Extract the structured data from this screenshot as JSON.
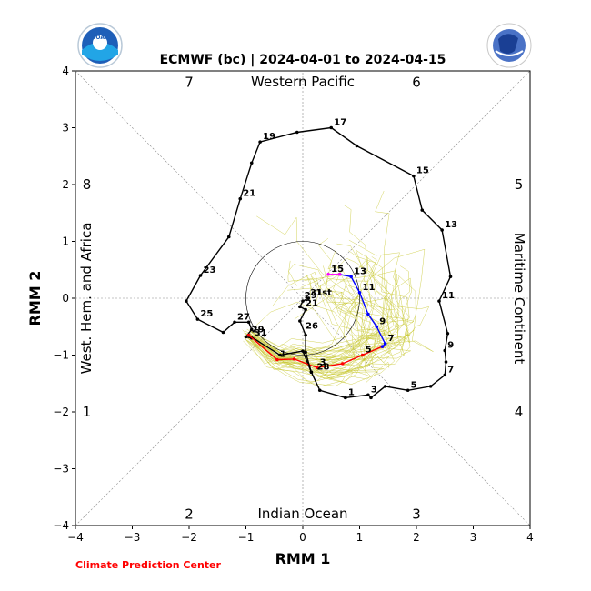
{
  "chart_data": {
    "type": "line",
    "title": "ECMWF (bc) | 2024-04-01 to 2024-04-15",
    "xlabel": "RMM 1",
    "ylabel": "RMM 2",
    "xlim": [
      -4,
      4
    ],
    "ylim": [
      -4,
      4
    ],
    "xticks": [
      "−4",
      "−3",
      "−2",
      "−1",
      "0",
      "1",
      "2",
      "3",
      "4"
    ],
    "yticks": [
      "−4",
      "−3",
      "−2",
      "−1",
      "0",
      "1",
      "2",
      "3",
      "4"
    ],
    "phase_labels": [
      {
        "text": "1",
        "x": -3.8,
        "y": -2.0
      },
      {
        "text": "2",
        "x": -2.0,
        "y": -3.8
      },
      {
        "text": "3",
        "x": 2.0,
        "y": -3.8
      },
      {
        "text": "4",
        "x": 3.8,
        "y": -2.0
      },
      {
        "text": "5",
        "x": 3.8,
        "y": 2.0
      },
      {
        "text": "6",
        "x": 2.0,
        "y": 3.8
      },
      {
        "text": "7",
        "x": -2.0,
        "y": 3.8
      },
      {
        "text": "8",
        "x": -3.8,
        "y": 2.0
      }
    ],
    "region_labels": {
      "top": "Western Pacific",
      "bottom": "Indian Ocean",
      "left": "West. Hem. and Africa",
      "right": "Maritime Continent"
    },
    "colors": {
      "observed": "#000000",
      "forecast_first": "#ff0000",
      "forecast_second": "#0000ff",
      "forecast_tail": "#ff00ff",
      "ensemble": "#c8c832"
    },
    "series": [
      {
        "points": [
          [
            0.75,
            -1.75
          ],
          [
            1.15,
            -1.7
          ],
          [
            1.2,
            -1.75
          ],
          [
            1.45,
            -1.55
          ],
          [
            1.85,
            -1.62
          ],
          [
            2.25,
            -1.55
          ],
          [
            2.5,
            -1.35
          ],
          [
            2.52,
            -1.12
          ],
          [
            2.5,
            -0.92
          ],
          [
            2.55,
            -0.62
          ],
          [
            2.4,
            -0.05
          ],
          [
            2.6,
            0.38
          ],
          [
            2.45,
            1.2
          ],
          [
            2.1,
            1.55
          ],
          [
            1.95,
            2.15
          ],
          [
            0.95,
            2.68
          ],
          [
            0.5,
            3.0
          ],
          [
            -0.1,
            2.92
          ],
          [
            -0.75,
            2.75
          ],
          [
            -0.9,
            2.38
          ],
          [
            -1.1,
            1.75
          ],
          [
            -1.3,
            1.08
          ],
          [
            -1.8,
            0.4
          ],
          [
            -2.05,
            -0.05
          ],
          [
            -1.85,
            -0.37
          ],
          [
            -1.4,
            -0.6
          ],
          [
            -1.2,
            -0.42
          ],
          [
            -0.95,
            -0.42
          ],
          [
            -0.9,
            -0.55
          ],
          [
            -1.0,
            -0.68
          ],
          [
            -0.9,
            -0.7
          ],
          [
            -0.95,
            -0.65
          ],
          [
            -0.4,
            -1.0
          ],
          [
            0.0,
            -0.93
          ],
          [
            0.15,
            -1.3
          ],
          [
            0.3,
            -1.62
          ],
          [
            0.75,
            -1.75
          ]
        ],
        "labels": [
          {
            "text": "1",
            "at": [
              0.75,
              -1.75
            ]
          },
          {
            "text": "3",
            "at": [
              1.15,
              -1.7
            ]
          },
          {
            "text": "5",
            "at": [
              1.85,
              -1.62
            ]
          },
          {
            "text": "7",
            "at": [
              2.5,
              -1.35
            ]
          },
          {
            "text": "9",
            "at": [
              2.5,
              -0.92
            ]
          },
          {
            "text": "11",
            "at": [
              2.4,
              -0.05
            ]
          },
          {
            "text": "13",
            "at": [
              2.45,
              1.2
            ]
          },
          {
            "text": "15",
            "at": [
              1.95,
              2.15
            ]
          },
          {
            "text": "17",
            "at": [
              0.5,
              3.0
            ]
          },
          {
            "text": "19",
            "at": [
              -0.75,
              2.75
            ]
          },
          {
            "text": "21",
            "at": [
              -1.1,
              1.75
            ]
          },
          {
            "text": "23",
            "at": [
              -1.8,
              0.4
            ]
          },
          {
            "text": "25",
            "at": [
              -1.85,
              -0.37
            ]
          },
          {
            "text": "27",
            "at": [
              -1.2,
              -0.42
            ]
          },
          {
            "text": "29",
            "at": [
              -0.95,
              -0.65
            ]
          },
          {
            "text": "31",
            "at": [
              -0.9,
              -0.7
            ]
          }
        ]
      },
      {
        "points": [
          [
            -0.95,
            -0.65
          ],
          [
            -0.45,
            -1.08
          ],
          [
            -0.15,
            -1.07
          ],
          [
            0.25,
            -1.22
          ],
          [
            0.7,
            -1.15
          ],
          [
            1.05,
            -1.0
          ],
          [
            1.4,
            -0.85
          ]
        ],
        "labels": [
          {
            "text": "1",
            "at": [
              -0.45,
              -1.08
            ]
          },
          {
            "text": "3",
            "at": [
              0.25,
              -1.22
            ]
          },
          {
            "text": "5",
            "at": [
              1.05,
              -1.0
            ]
          }
        ]
      },
      {
        "points": [
          [
            1.4,
            -0.85
          ],
          [
            1.45,
            -0.8
          ],
          [
            1.3,
            -0.5
          ],
          [
            1.15,
            -0.28
          ],
          [
            1.0,
            0.1
          ],
          [
            0.85,
            0.38
          ],
          [
            0.65,
            0.42
          ]
        ],
        "labels": [
          {
            "text": "7",
            "at": [
              1.45,
              -0.8
            ]
          },
          {
            "text": "9",
            "at": [
              1.3,
              -0.5
            ]
          },
          {
            "text": "11",
            "at": [
              1.0,
              0.1
            ]
          },
          {
            "text": "13",
            "at": [
              0.85,
              0.38
            ]
          }
        ]
      },
      {
        "points": [
          [
            0.65,
            0.42
          ],
          [
            0.45,
            0.42
          ]
        ],
        "labels": [
          {
            "text": "15",
            "at": [
              0.45,
              0.42
            ]
          }
        ]
      },
      {
        "points": [
          [
            0.1,
            0.0
          ],
          [
            0.0,
            -0.05
          ],
          [
            -0.05,
            -0.15
          ],
          [
            0.05,
            -0.2
          ],
          [
            -0.05,
            -0.4
          ],
          [
            0.05,
            -0.65
          ],
          [
            0.05,
            -0.95
          ],
          [
            0.15,
            -1.3
          ]
        ],
        "labels": [
          {
            "text": "1st",
            "at": [
              0.18,
              0.0
            ]
          },
          {
            "text": "31",
            "at": [
              0.08,
              0.0
            ]
          },
          {
            "text": "29",
            "at": [
              -0.02,
              -0.05
            ]
          },
          {
            "text": "21",
            "at": [
              0.0,
              -0.18
            ]
          },
          {
            "text": "26",
            "at": [
              0.0,
              -0.58
            ]
          },
          {
            "text": "28",
            "at": [
              0.2,
              -1.3
            ]
          }
        ]
      }
    ]
  },
  "footer": "Climate Prediction Center"
}
